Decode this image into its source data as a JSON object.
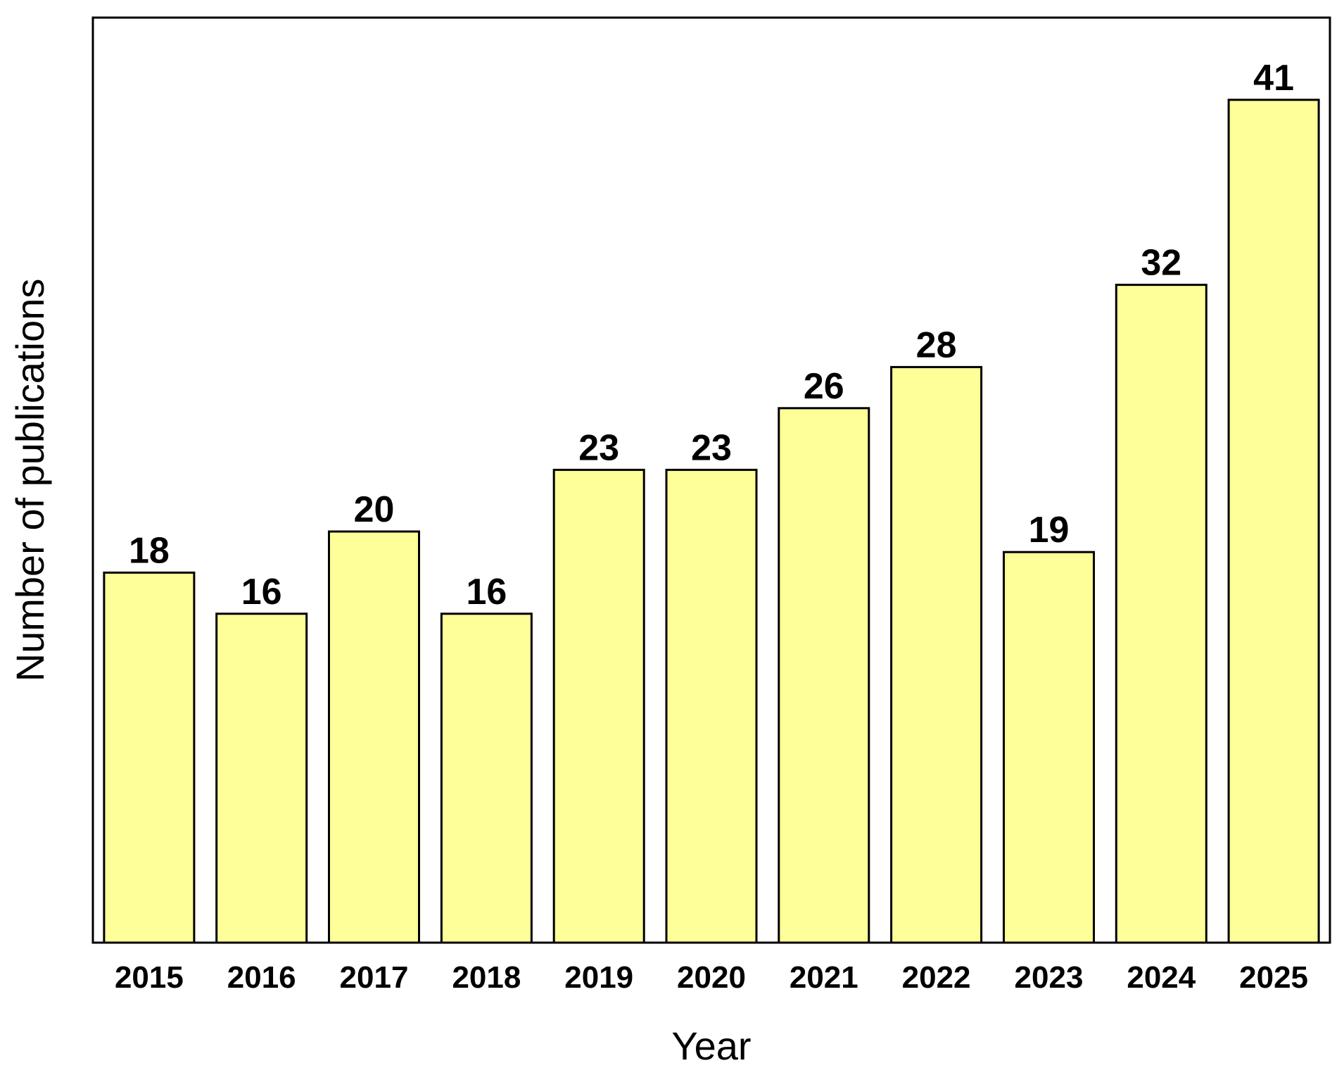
{
  "chart_data": {
    "type": "bar",
    "xlabel": "Year",
    "ylabel": "Number of publications",
    "categories": [
      "2015",
      "2016",
      "2017",
      "2018",
      "2019",
      "2020",
      "2021",
      "2022",
      "2023",
      "2024",
      "2025"
    ],
    "values": [
      18,
      16,
      20,
      16,
      23,
      23,
      26,
      28,
      19,
      32,
      41
    ],
    "ylim": [
      0,
      45
    ],
    "grid": false,
    "legend": "none",
    "bar_color": "#FFFF99",
    "bar_edge_color": "#000000",
    "y_ticks_shown": false,
    "data_labels_shown": true
  }
}
